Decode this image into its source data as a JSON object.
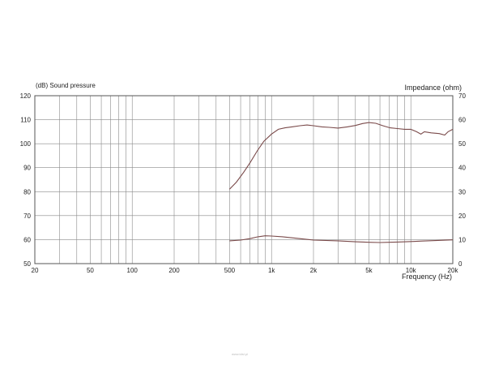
{
  "chart_data": {
    "type": "line",
    "ylabel_left": "(dB)  Sound pressure",
    "ylabel_right": "Impedance  (ohm)",
    "xlabel": "Frequency  (Hz)",
    "x_scale": "log",
    "xlim": [
      20,
      20000
    ],
    "ylim_left": [
      50,
      120
    ],
    "ylim_right": [
      0,
      70
    ],
    "x_ticks": [
      {
        "value": 20,
        "label": "20"
      },
      {
        "value": 50,
        "label": "50"
      },
      {
        "value": 100,
        "label": "100"
      },
      {
        "value": 200,
        "label": "200"
      },
      {
        "value": 500,
        "label": "500"
      },
      {
        "value": 1000,
        "label": "1k"
      },
      {
        "value": 2000,
        "label": "2k"
      },
      {
        "value": 5000,
        "label": "5k"
      },
      {
        "value": 10000,
        "label": "10k"
      },
      {
        "value": 20000,
        "label": "20k"
      }
    ],
    "y_ticks_left": [
      "50",
      "60",
      "70",
      "80",
      "90",
      "100",
      "110",
      "120"
    ],
    "y_ticks_right": [
      "0",
      "10",
      "20",
      "30",
      "40",
      "50",
      "60",
      "70"
    ],
    "grid": true,
    "series": [
      {
        "axis": "left",
        "color": "#7a4a4a",
        "points": [
          [
            500,
            81
          ],
          [
            560,
            84
          ],
          [
            630,
            88
          ],
          [
            700,
            92
          ],
          [
            790,
            97
          ],
          [
            880,
            101
          ],
          [
            1000,
            104
          ],
          [
            1120,
            106
          ],
          [
            1250,
            106.6
          ],
          [
            1400,
            107
          ],
          [
            1600,
            107.5
          ],
          [
            1800,
            107.8
          ],
          [
            2000,
            107.5
          ],
          [
            2300,
            107
          ],
          [
            2600,
            106.8
          ],
          [
            3000,
            106.5
          ],
          [
            3500,
            107
          ],
          [
            4000,
            107.6
          ],
          [
            4500,
            108.4
          ],
          [
            5000,
            108.8
          ],
          [
            5600,
            108.5
          ],
          [
            6300,
            107.5
          ],
          [
            7100,
            106.6
          ],
          [
            8000,
            106.3
          ],
          [
            9000,
            106
          ],
          [
            10000,
            106
          ],
          [
            11000,
            105
          ],
          [
            11800,
            104
          ],
          [
            12500,
            105
          ],
          [
            14000,
            104.5
          ],
          [
            16000,
            104.2
          ],
          [
            17500,
            103.6
          ],
          [
            18500,
            105
          ],
          [
            20000,
            106
          ]
        ]
      },
      {
        "axis": "right",
        "color": "#7a4a4a",
        "points": [
          [
            500,
            9.5
          ],
          [
            600,
            9.8
          ],
          [
            700,
            10.4
          ],
          [
            800,
            11.2
          ],
          [
            900,
            11.6
          ],
          [
            1000,
            11.5
          ],
          [
            1200,
            11.2
          ],
          [
            1500,
            10.6
          ],
          [
            2000,
            9.8
          ],
          [
            3000,
            9.5
          ],
          [
            4000,
            9.1
          ],
          [
            5000,
            8.9
          ],
          [
            6000,
            8.8
          ],
          [
            7000,
            8.9
          ],
          [
            8000,
            9.0
          ],
          [
            10000,
            9.2
          ],
          [
            12000,
            9.4
          ],
          [
            15000,
            9.6
          ],
          [
            20000,
            9.9
          ]
        ]
      }
    ]
  },
  "watermark": "www.tdsl.pl"
}
